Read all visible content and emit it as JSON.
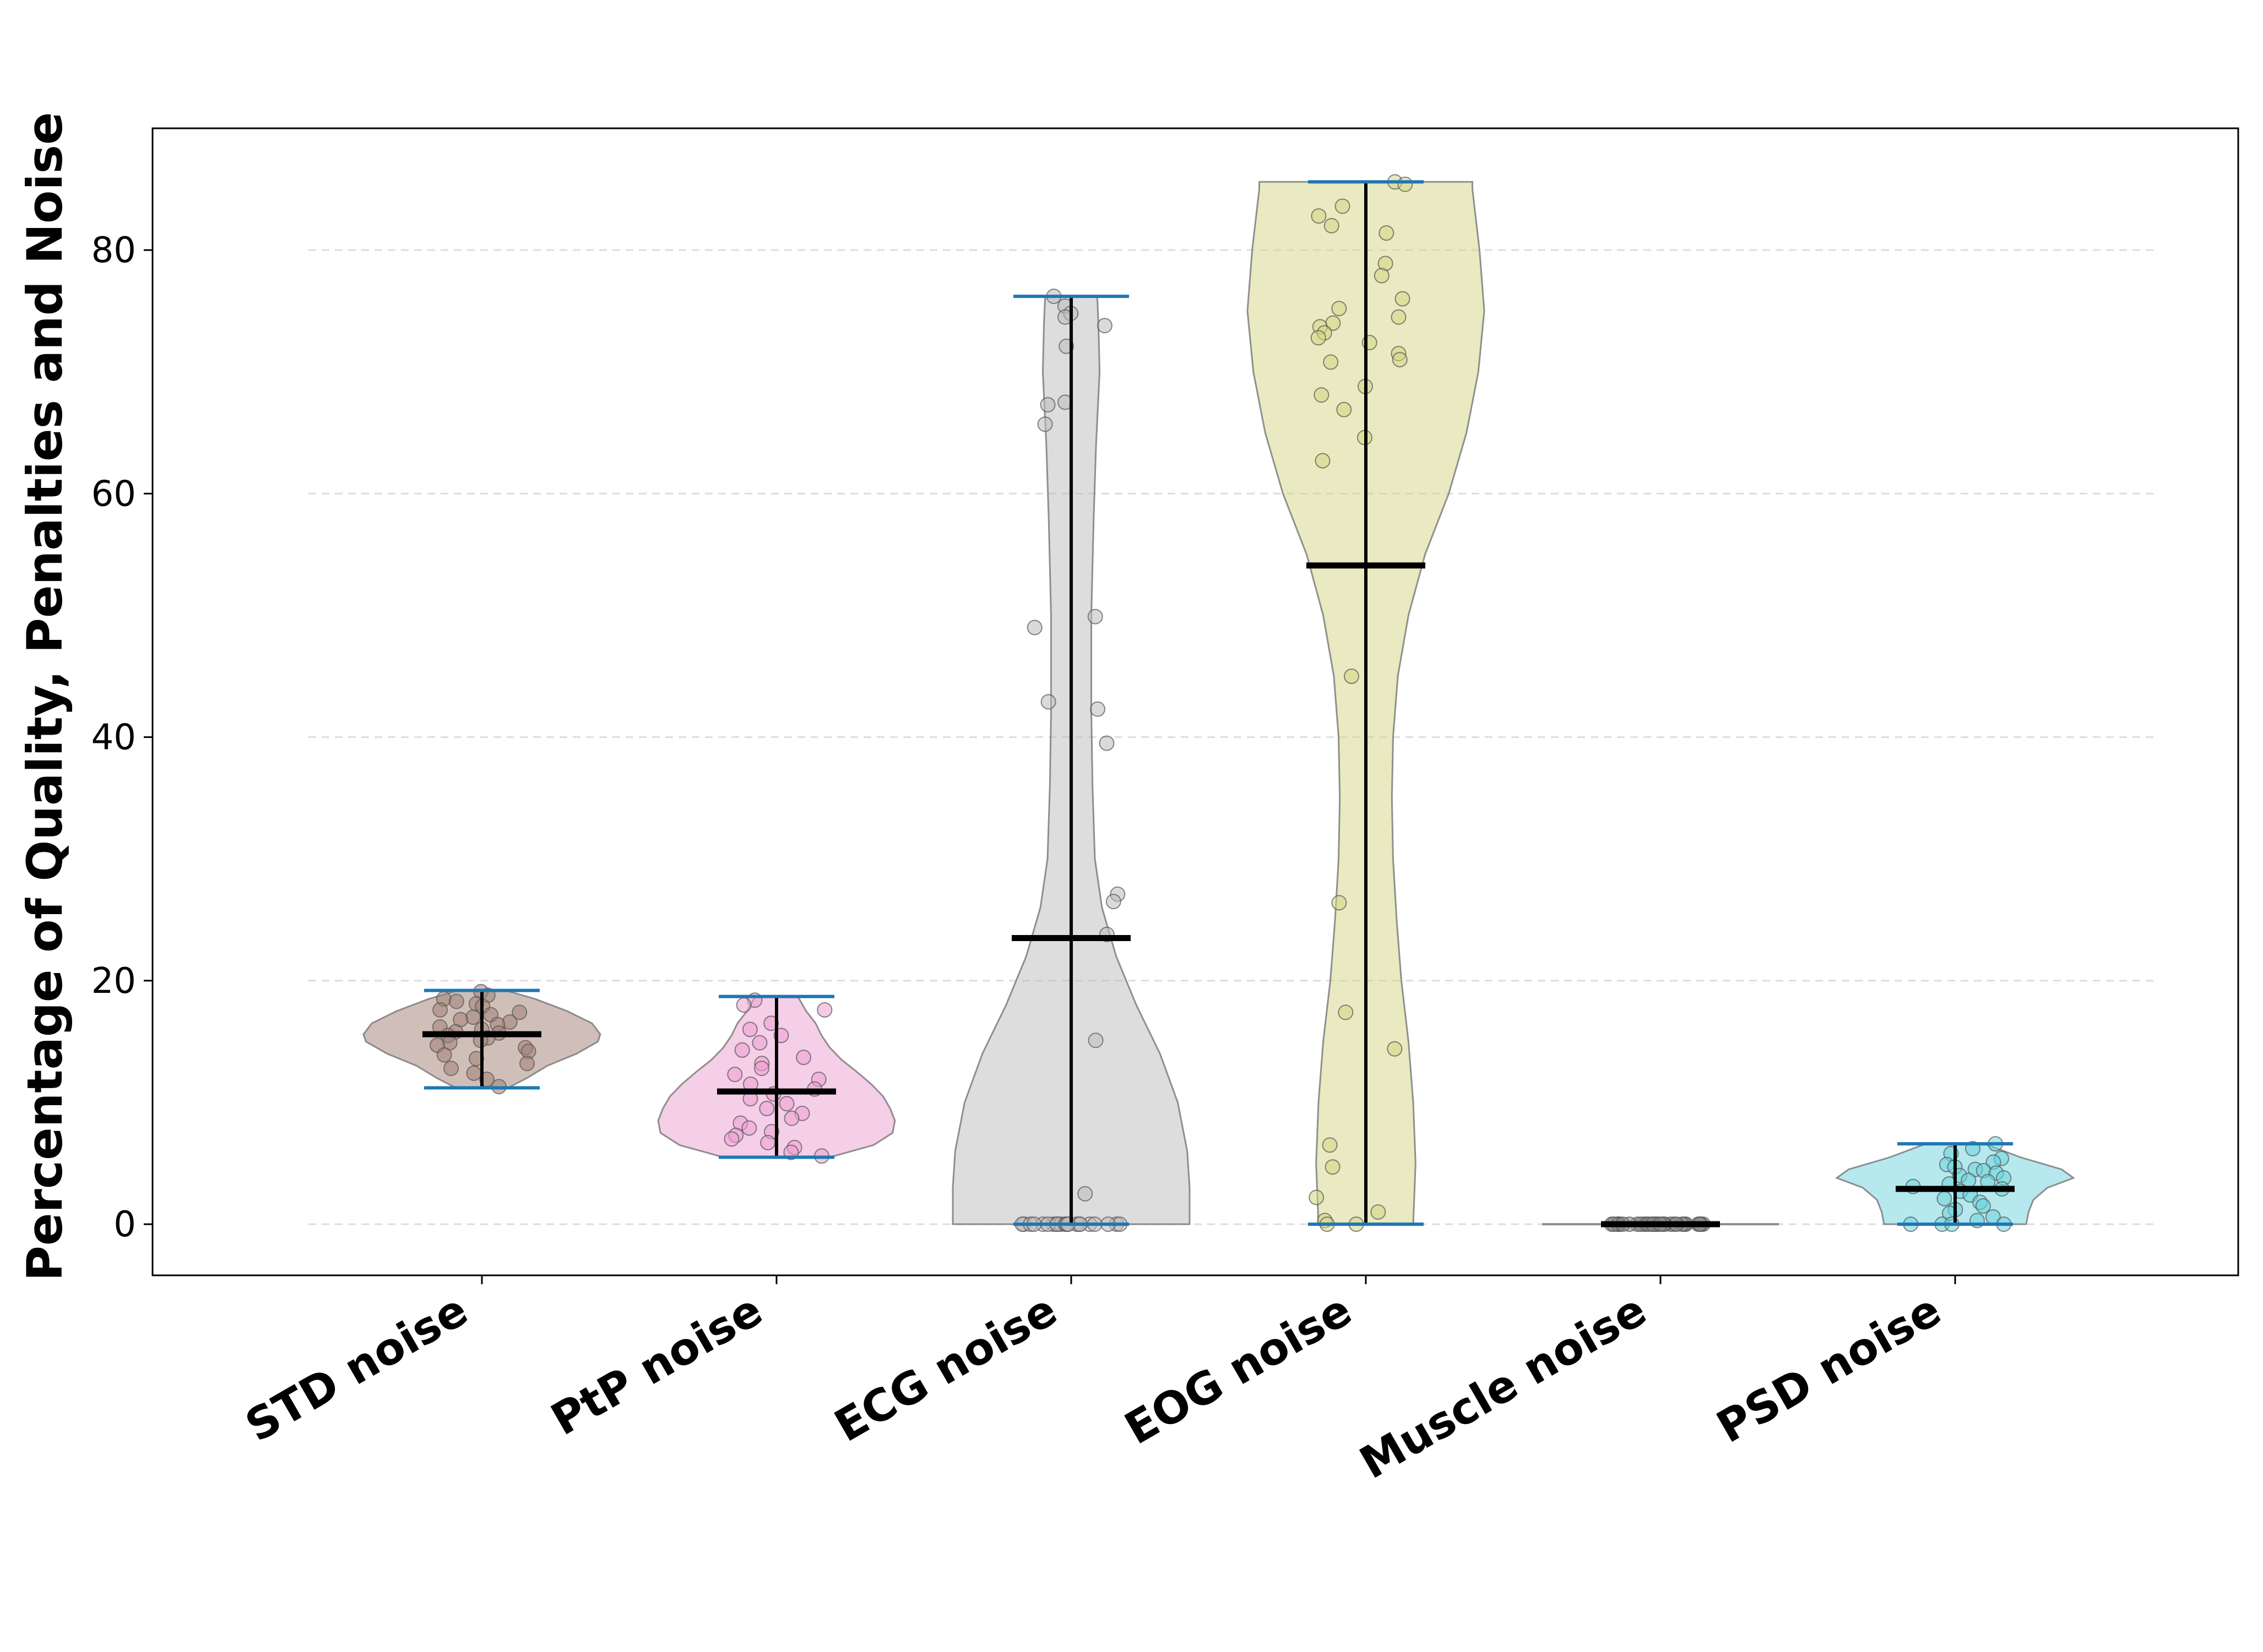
{
  "chart_data": {
    "type": "violin",
    "title": "",
    "xlabel": "",
    "ylabel": "Percentage of Quality, Penalties and Noise",
    "ylim": [
      -4.2,
      90
    ],
    "yticks": [
      0,
      20,
      40,
      60,
      80
    ],
    "grid": "y-dashed",
    "legend": "none",
    "categories": [
      "STD noise",
      "PtP noise",
      "ECG noise",
      "EOG noise",
      "Muscle noise",
      "PSD noise"
    ],
    "colors": [
      "#a17f74",
      "#ec9ed2",
      "#bcbcbc",
      "#d4d683",
      "#8c8c8c",
      "#6cd4de"
    ],
    "range_color": "#1f77b4",
    "series": [
      {
        "name": "STD noise",
        "min": 11.2,
        "max": 19.2,
        "mean": 15.6,
        "density": [
          [
            11.2,
            0.22
          ],
          [
            12,
            0.38
          ],
          [
            13,
            0.55
          ],
          [
            14,
            0.8
          ],
          [
            15,
            0.98
          ],
          [
            15.6,
            1.0
          ],
          [
            16.5,
            0.93
          ],
          [
            17.5,
            0.72
          ],
          [
            18.5,
            0.45
          ],
          [
            19.2,
            0.2
          ]
        ],
        "points": [
          19.1,
          18.8,
          18.5,
          18.3,
          18.1,
          17.9,
          17.6,
          17.4,
          17.2,
          17.0,
          16.8,
          16.6,
          16.4,
          16.2,
          16.0,
          15.8,
          15.7,
          15.5,
          15.3,
          15.1,
          14.9,
          14.7,
          14.5,
          14.2,
          13.9,
          13.6,
          13.2,
          12.8,
          12.4,
          11.9,
          11.3
        ]
      },
      {
        "name": "PtP noise",
        "min": 5.5,
        "max": 18.7,
        "mean": 10.9,
        "density": [
          [
            5.5,
            0.45
          ],
          [
            6.5,
            0.82
          ],
          [
            7.5,
            0.98
          ],
          [
            8.5,
            1.0
          ],
          [
            9.5,
            0.96
          ],
          [
            10.5,
            0.9
          ],
          [
            11.5,
            0.8
          ],
          [
            12.5,
            0.68
          ],
          [
            13.5,
            0.55
          ],
          [
            14.5,
            0.45
          ],
          [
            15.5,
            0.38
          ],
          [
            16.5,
            0.33
          ],
          [
            17.5,
            0.25
          ],
          [
            18.7,
            0.18
          ]
        ],
        "points": [
          18.4,
          18.0,
          17.6,
          16.5,
          16.0,
          15.5,
          14.9,
          14.3,
          13.7,
          13.2,
          12.8,
          12.3,
          11.9,
          11.5,
          11.1,
          10.7,
          10.3,
          9.9,
          9.5,
          9.1,
          8.7,
          8.3,
          7.9,
          7.6,
          7.3,
          7.0,
          6.7,
          6.3,
          5.9,
          5.6
        ]
      },
      {
        "name": "ECG noise",
        "min": 0.0,
        "max": 76.2,
        "mean": 23.5,
        "density": [
          [
            0,
            1.0
          ],
          [
            3,
            1.0
          ],
          [
            6,
            0.98
          ],
          [
            10,
            0.9
          ],
          [
            14,
            0.75
          ],
          [
            18,
            0.55
          ],
          [
            22,
            0.38
          ],
          [
            26,
            0.26
          ],
          [
            30,
            0.2
          ],
          [
            36,
            0.18
          ],
          [
            42,
            0.17
          ],
          [
            50,
            0.17
          ],
          [
            58,
            0.19
          ],
          [
            64,
            0.21
          ],
          [
            70,
            0.24
          ],
          [
            74,
            0.23
          ],
          [
            76.2,
            0.22
          ]
        ],
        "points": [
          76.2,
          75.4,
          74.8,
          74.5,
          73.8,
          72.1,
          67.5,
          67.3,
          65.7,
          49.9,
          49.0,
          42.9,
          42.3,
          39.5,
          27.1,
          26.5,
          23.8,
          15.1,
          2.5,
          0,
          0,
          0,
          0,
          0,
          0,
          0,
          0,
          0,
          0,
          0,
          0,
          0,
          0,
          0,
          0,
          0,
          0,
          0,
          0,
          0
        ]
      },
      {
        "name": "EOG noise",
        "min": 0.0,
        "max": 85.6,
        "mean": 54.1,
        "density": [
          [
            0,
            0.4
          ],
          [
            5,
            0.42
          ],
          [
            10,
            0.4
          ],
          [
            15,
            0.36
          ],
          [
            20,
            0.3
          ],
          [
            25,
            0.26
          ],
          [
            30,
            0.23
          ],
          [
            35,
            0.22
          ],
          [
            40,
            0.23
          ],
          [
            45,
            0.27
          ],
          [
            50,
            0.36
          ],
          [
            55,
            0.5
          ],
          [
            60,
            0.7
          ],
          [
            65,
            0.85
          ],
          [
            70,
            0.95
          ],
          [
            75,
            1.0
          ],
          [
            80,
            0.96
          ],
          [
            85,
            0.9
          ],
          [
            85.6,
            0.9
          ]
        ],
        "points": [
          85.6,
          85.4,
          83.6,
          82.8,
          82.0,
          81.4,
          78.9,
          77.9,
          76.0,
          75.2,
          74.5,
          74.0,
          73.7,
          73.2,
          72.8,
          72.4,
          71.5,
          71.0,
          70.8,
          68.8,
          68.1,
          66.9,
          64.6,
          62.7,
          45.0,
          26.4,
          17.4,
          14.4,
          6.5,
          4.7,
          2.2,
          1.0,
          0.3,
          0,
          0
        ]
      },
      {
        "name": "Muscle noise",
        "min": 0.0,
        "max": 0.0,
        "mean": 0.0,
        "density": [
          [
            0,
            1.0
          ]
        ],
        "points": [
          0,
          0,
          0,
          0,
          0,
          0,
          0,
          0,
          0,
          0,
          0,
          0,
          0,
          0,
          0,
          0,
          0,
          0,
          0,
          0,
          0,
          0,
          0,
          0,
          0,
          0,
          0,
          0,
          0,
          0
        ]
      },
      {
        "name": "PSD noise",
        "min": 0.0,
        "max": 6.6,
        "mean": 2.9,
        "density": [
          [
            0,
            0.6
          ],
          [
            1,
            0.62
          ],
          [
            2,
            0.66
          ],
          [
            3,
            0.78
          ],
          [
            3.8,
            1.0
          ],
          [
            4.5,
            0.9
          ],
          [
            5.5,
            0.55
          ],
          [
            6.6,
            0.25
          ]
        ],
        "points": [
          6.6,
          6.2,
          5.8,
          5.4,
          5.1,
          4.9,
          4.7,
          4.5,
          4.4,
          4.2,
          4.0,
          3.8,
          3.6,
          3.5,
          3.3,
          3.1,
          2.9,
          2.7,
          2.4,
          2.1,
          1.8,
          1.5,
          1.2,
          0.9,
          0.6,
          0.3,
          0,
          0,
          0,
          0
        ]
      }
    ]
  }
}
